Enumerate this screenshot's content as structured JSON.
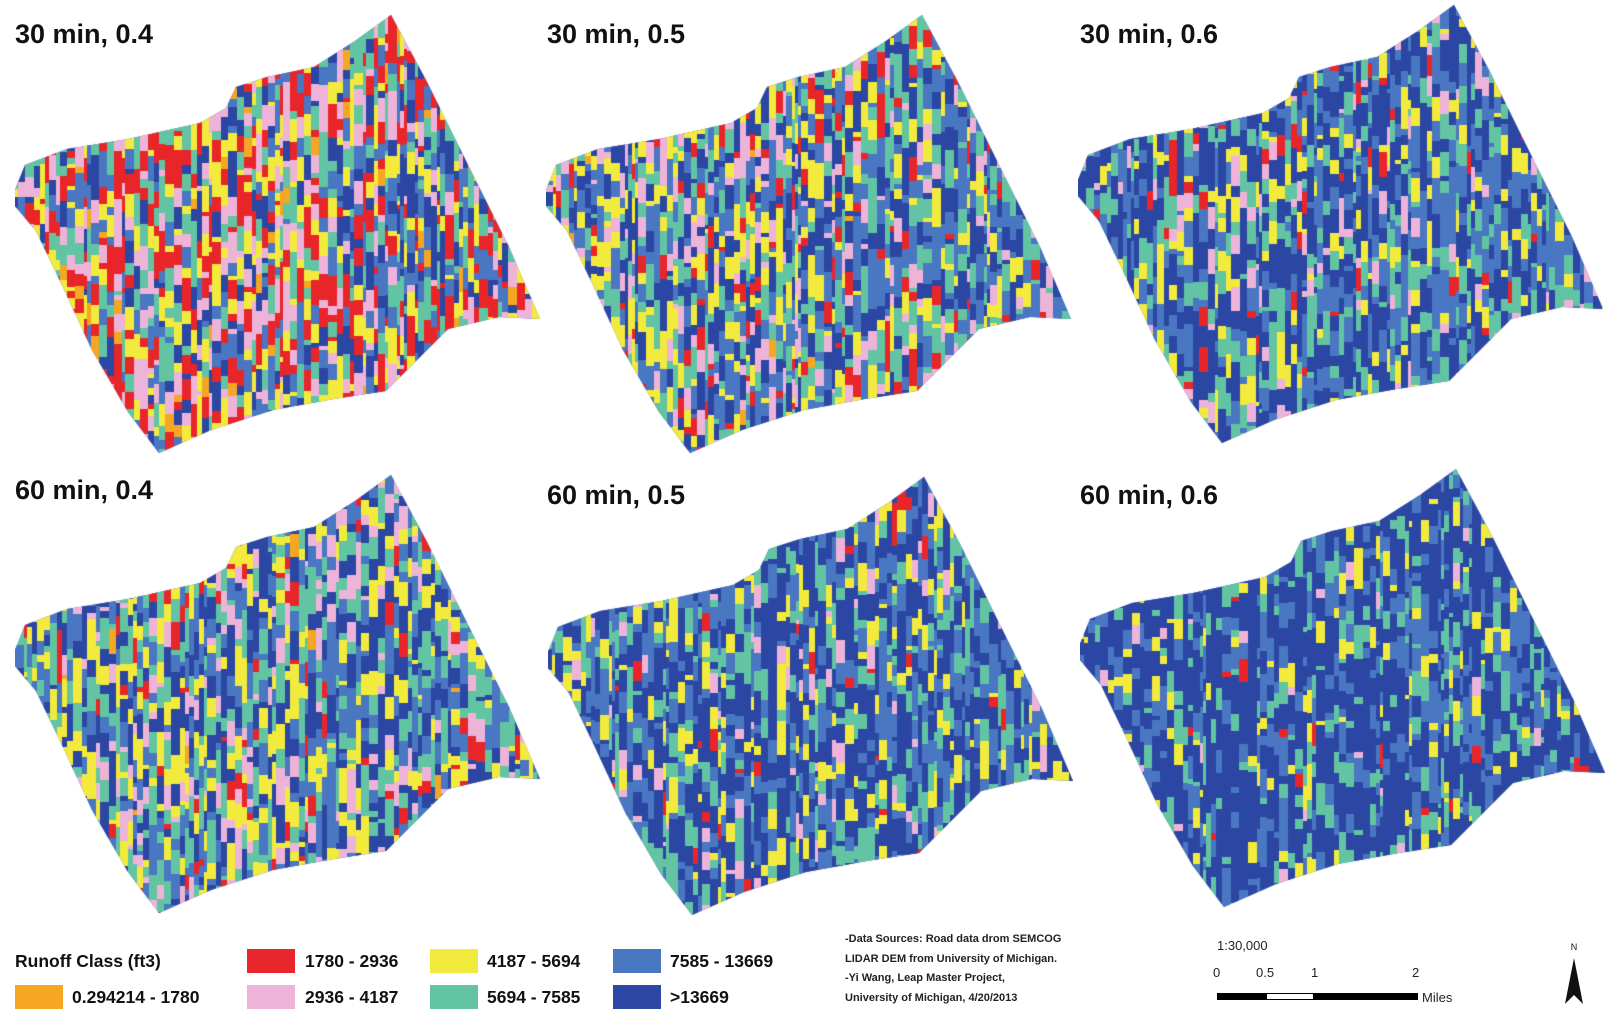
{
  "panels": [
    {
      "label": "30 min, 0.4"
    },
    {
      "label": "30 min, 0.5"
    },
    {
      "label": "30 min, 0.6"
    },
    {
      "label": "60 min, 0.4"
    },
    {
      "label": "60 min, 0.5"
    },
    {
      "label": "60 min, 0.6"
    }
  ],
  "legend": {
    "title": "Runoff Class (ft3)",
    "classes": [
      {
        "label": "0.294214 - 1780",
        "color": "#F5A623"
      },
      {
        "label": "1780 - 2936",
        "color": "#E8262A"
      },
      {
        "label": "2936 - 4187",
        "color": "#EDB3D8"
      },
      {
        "label": "4187 - 5694",
        "color": "#F2EA3C"
      },
      {
        "label": "5694 - 7585",
        "color": "#62C4A3"
      },
      {
        "label": "7585 - 13669",
        "color": "#4A77C2"
      },
      {
        "label": ">13669",
        "color": "#2C47A3"
      }
    ]
  },
  "credits": {
    "lines": [
      "-Data Sources: Road data drom SEMCOG",
      "LIDAR DEM from University of Michigan.",
      "-Yi Wang, Leap Master Project,",
      "University of Michigan, 4/20/2013"
    ]
  },
  "scale": {
    "ratio": "1:30,000",
    "ticks": [
      "0",
      "0.5",
      "1",
      "2"
    ],
    "unit": "Miles"
  },
  "north_arrow": {
    "label": "N",
    "icon": "north-arrow-icon"
  }
}
